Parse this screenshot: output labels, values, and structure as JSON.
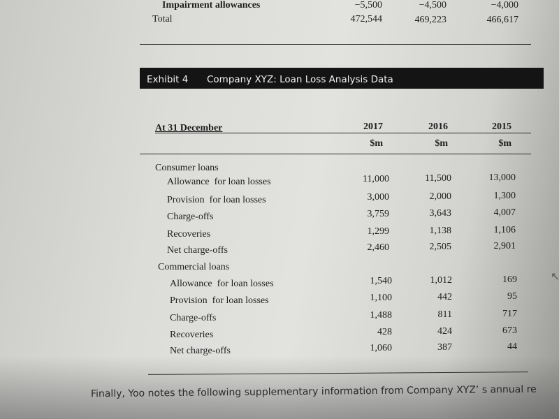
{
  "previous_table": {
    "partial_row": {
      "label": "Impairment allowances",
      "values": [
        "−5,500",
        "−4,500",
        "−4,000"
      ]
    },
    "total_row": {
      "label": "Total",
      "values": [
        "472,544",
        "469,223",
        "466,617"
      ]
    }
  },
  "exhibit": {
    "number": "Exhibit 4",
    "title": "Company XYZ: Loan Loss Analysis Data",
    "header_label": "At 31 December",
    "years": [
      "2017",
      "2016",
      "2015"
    ],
    "unit": "$m",
    "sections": [
      {
        "name": "Consumer loans",
        "rows": [
          {
            "label": "Allowance  for loan losses",
            "values": [
              "11,000",
              "11,500",
              "13,000"
            ]
          },
          {
            "label": "Provision  for loan losses",
            "values": [
              "3,000",
              "2,000",
              "1,300"
            ]
          },
          {
            "label": "Charge-offs",
            "values": [
              "3,759",
              "3,643",
              "4,007"
            ]
          },
          {
            "label": "Recoveries",
            "values": [
              "1,299",
              "1,138",
              "1,106"
            ]
          },
          {
            "label": "Net charge-offs",
            "values": [
              "2,460",
              "2,505",
              "2,901"
            ]
          }
        ]
      },
      {
        "name": "Commercial loans",
        "rows": [
          {
            "label": "Allowance  for loan losses",
            "values": [
              "1,540",
              "1,012",
              "169"
            ]
          },
          {
            "label": "Provision  for loan losses",
            "values": [
              "1,100",
              "442",
              "95"
            ]
          },
          {
            "label": "Charge-offs",
            "values": [
              "1,488",
              "811",
              "717"
            ]
          },
          {
            "label": "Recoveries",
            "values": [
              "428",
              "424",
              "673"
            ]
          },
          {
            "label": "Net charge-offs",
            "values": [
              "1,060",
              "387",
              "44"
            ]
          }
        ]
      }
    ]
  },
  "footer_text": "Finally, Yoo notes the following supplementary information from Company XYZ’  s annual re"
}
